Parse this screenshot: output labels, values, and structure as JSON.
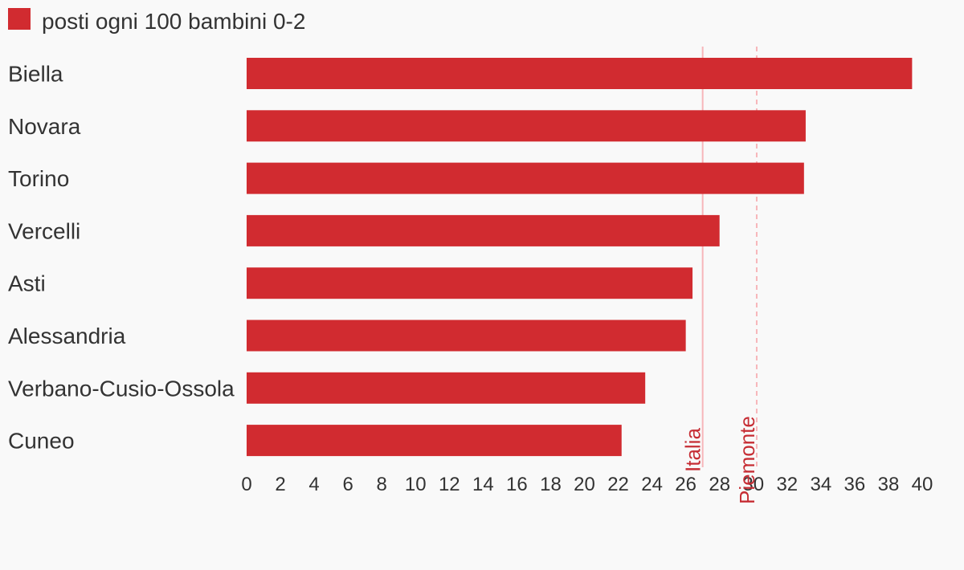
{
  "chart_data": {
    "type": "bar",
    "orientation": "horizontal",
    "categories": [
      "Biella",
      "Novara",
      "Torino",
      "Vercelli",
      "Asti",
      "Alessandria",
      "Verbano-Cusio-Ossola",
      "Cuneo"
    ],
    "series": [
      {
        "name": "posti ogni 100 bambini 0-2",
        "values": [
          39.4,
          33.1,
          33.0,
          28.0,
          26.4,
          26.0,
          23.6,
          22.2
        ],
        "color": "#d12b30"
      }
    ],
    "xlim": [
      0,
      40
    ],
    "x_ticks": [
      0,
      2,
      4,
      6,
      8,
      10,
      12,
      14,
      16,
      18,
      20,
      22,
      24,
      26,
      28,
      30,
      32,
      34,
      36,
      38,
      40
    ],
    "reference_lines": [
      {
        "label": "Italia",
        "value": 27.0,
        "style": "solid",
        "color": "#f7b6ba",
        "label_color": "#c62d34"
      },
      {
        "label": "Piemonte",
        "value": 30.2,
        "style": "dashed",
        "color": "#f7b6ba",
        "label_color": "#c62d34"
      }
    ],
    "legend_position": "top-left",
    "grid": false,
    "title": "",
    "xlabel": "",
    "ylabel": ""
  }
}
